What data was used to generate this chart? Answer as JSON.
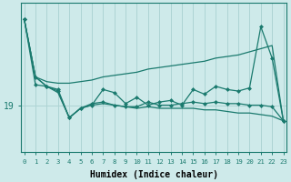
{
  "xlabel": "Humidex (Indice chaleur)",
  "ytick_labels": [
    "19"
  ],
  "ytick_values": [
    19
  ],
  "xtick_labels": [
    "0",
    "1",
    "2",
    "3",
    "4",
    "5",
    "6",
    "7",
    "8",
    "9",
    "10",
    "11",
    "12",
    "13",
    "14",
    "15",
    "16",
    "17",
    "18",
    "19",
    "20",
    "21",
    "22",
    "23"
  ],
  "xlim": [
    -0.3,
    23.3
  ],
  "ylim": [
    16.0,
    25.5
  ],
  "background_color": "#ceeaea",
  "grid_color": "#aed4d4",
  "line_color": "#1a7a6e",
  "x_vals": [
    0,
    1,
    2,
    3,
    4,
    5,
    6,
    7,
    8,
    9,
    10,
    11,
    12,
    13,
    14,
    15,
    16,
    17,
    18,
    19,
    20,
    21,
    22,
    23
  ],
  "y_top_envelope": [
    24.5,
    20.8,
    20.5,
    20.4,
    20.4,
    20.5,
    20.6,
    20.8,
    20.9,
    21.0,
    21.1,
    21.3,
    21.4,
    21.5,
    21.6,
    21.7,
    21.8,
    22.0,
    22.1,
    22.2,
    22.4,
    22.6,
    22.8,
    18.0
  ],
  "y_bot_envelope": [
    24.5,
    20.8,
    20.2,
    19.8,
    18.2,
    18.8,
    19.0,
    19.1,
    19.0,
    18.9,
    18.8,
    18.9,
    18.8,
    18.8,
    18.8,
    18.8,
    18.7,
    18.7,
    18.6,
    18.5,
    18.5,
    18.4,
    18.3,
    18.0
  ],
  "y_main_wiggly": [
    24.5,
    20.3,
    20.2,
    20.0,
    18.2,
    18.8,
    19.0,
    20.0,
    19.8,
    19.1,
    19.5,
    19.0,
    19.2,
    19.3,
    19.0,
    20.0,
    19.7,
    20.2,
    20.0,
    19.9,
    20.1,
    24.0,
    22.0,
    18.0
  ],
  "y_mid_flat": [
    24.5,
    20.8,
    20.2,
    19.9,
    18.2,
    18.8,
    19.1,
    19.2,
    19.0,
    18.9,
    18.9,
    19.2,
    19.0,
    19.0,
    19.1,
    19.2,
    19.1,
    19.2,
    19.1,
    19.1,
    19.0,
    19.0,
    18.9,
    18.0
  ]
}
